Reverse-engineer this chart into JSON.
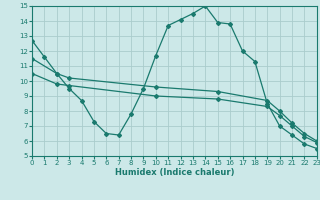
{
  "xlabel": "Humidex (Indice chaleur)",
  "bg_color": "#cce8e8",
  "grid_color": "#aacccc",
  "line_color": "#1a7a6e",
  "xlim": [
    0,
    23
  ],
  "ylim": [
    5,
    15
  ],
  "xticks": [
    0,
    1,
    2,
    3,
    4,
    5,
    6,
    7,
    8,
    9,
    10,
    11,
    12,
    13,
    14,
    15,
    16,
    17,
    18,
    19,
    20,
    21,
    22,
    23
  ],
  "yticks": [
    5,
    6,
    7,
    8,
    9,
    10,
    11,
    12,
    13,
    14,
    15
  ],
  "line1_x": [
    0,
    1,
    2,
    3,
    4,
    5,
    6,
    7,
    8,
    9,
    10,
    11,
    12,
    13,
    14,
    15,
    16,
    17,
    18,
    19,
    20,
    21,
    22,
    23
  ],
  "line1_y": [
    12.7,
    11.6,
    10.5,
    9.5,
    8.7,
    7.3,
    6.5,
    6.4,
    7.8,
    9.5,
    11.7,
    13.7,
    14.1,
    14.5,
    15.0,
    13.9,
    13.8,
    12.0,
    11.3,
    8.5,
    7.0,
    6.4,
    5.8,
    5.5
  ],
  "line2_x": [
    0,
    2,
    3,
    10,
    15,
    19,
    20,
    21,
    22,
    23
  ],
  "line2_y": [
    11.5,
    10.5,
    10.2,
    9.6,
    9.3,
    8.7,
    8.0,
    7.2,
    6.5,
    6.0
  ],
  "line3_x": [
    0,
    2,
    3,
    10,
    15,
    19,
    20,
    21,
    22,
    23
  ],
  "line3_y": [
    10.5,
    9.8,
    9.7,
    9.0,
    8.8,
    8.3,
    7.7,
    7.0,
    6.3,
    5.9
  ]
}
